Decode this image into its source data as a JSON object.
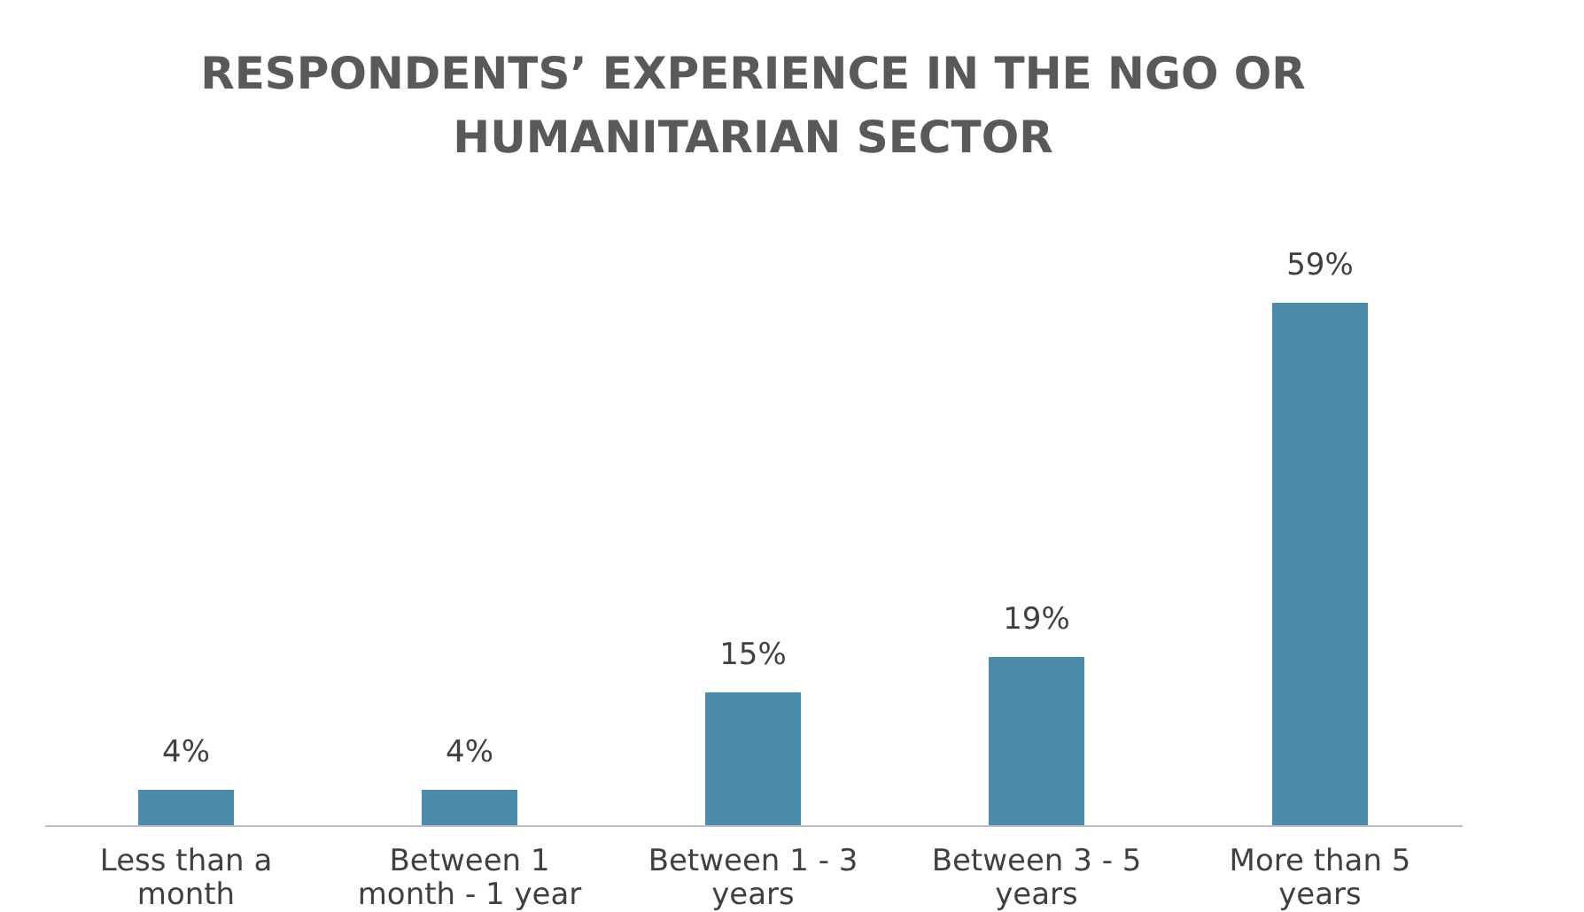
{
  "chart_data": {
    "type": "bar",
    "title": "RESPONDENTS’ EXPERIENCE IN THE NGO OR HUMANITARIAN SECTOR",
    "categories": [
      "Less than a month",
      "Between 1 month - 1 year",
      "Between 1 - 3 years",
      "Between 3 - 5 years",
      "More than 5 years"
    ],
    "values": [
      4,
      4,
      15,
      19,
      59
    ],
    "value_labels": [
      "4%",
      "4%",
      "15%",
      "19%",
      "59%"
    ],
    "color": "#4a8aab",
    "grid": false
  }
}
